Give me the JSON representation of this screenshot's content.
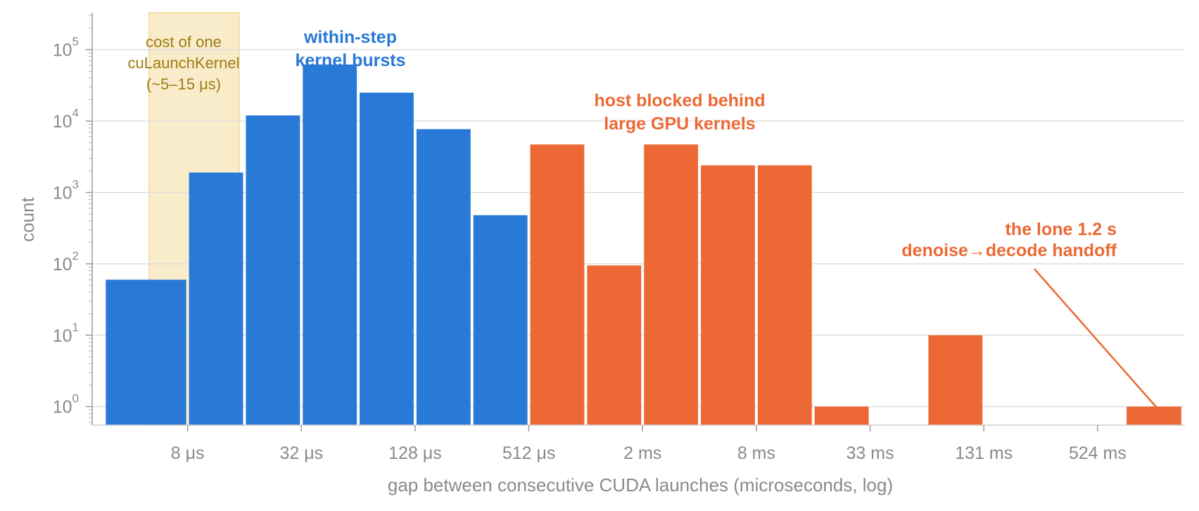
{
  "chart_data": {
    "type": "bar",
    "xlabel": "gap between consecutive CUDA launches (microseconds, log)",
    "ylabel": "count",
    "y_scale": "log",
    "ylim": [
      0.55,
      330000
    ],
    "xlim": [
      2.5,
      1520000
    ],
    "grid": "y-major",
    "x_ticks": [
      {
        "value": 8,
        "label": "8 μs"
      },
      {
        "value": 32,
        "label": "32 μs"
      },
      {
        "value": 128,
        "label": "128 μs"
      },
      {
        "value": 512,
        "label": "512 μs"
      },
      {
        "value": 2048,
        "label": "2 ms"
      },
      {
        "value": 8192,
        "label": "8 ms"
      },
      {
        "value": 32768,
        "label": "33 ms"
      },
      {
        "value": 131072,
        "label": "131 ms"
      },
      {
        "value": 524288,
        "label": "524 ms"
      }
    ],
    "y_ticks": [
      {
        "value": 1,
        "base": "10",
        "exp": "0"
      },
      {
        "value": 10,
        "base": "10",
        "exp": "1"
      },
      {
        "value": 100,
        "base": "10",
        "exp": "2"
      },
      {
        "value": 1000,
        "base": "10",
        "exp": "3"
      },
      {
        "value": 10000,
        "base": "10",
        "exp": "4"
      },
      {
        "value": 100000,
        "base": "10",
        "exp": "5"
      }
    ],
    "series": [
      {
        "color": "#2979d6",
        "bins": [
          {
            "lo": 2.9,
            "hi": 8,
            "count": 60
          },
          {
            "lo": 8,
            "hi": 16,
            "count": 1900
          },
          {
            "lo": 16,
            "hi": 32,
            "count": 12000
          },
          {
            "lo": 32,
            "hi": 64,
            "count": 62000
          },
          {
            "lo": 64,
            "hi": 128,
            "count": 25000
          },
          {
            "lo": 128,
            "hi": 256,
            "count": 7700
          },
          {
            "lo": 256,
            "hi": 512,
            "count": 480
          }
        ]
      },
      {
        "color": "#ec6935",
        "bins": [
          {
            "lo": 512,
            "hi": 1024,
            "count": 4700
          },
          {
            "lo": 1024,
            "hi": 2048,
            "count": 95
          },
          {
            "lo": 2048,
            "hi": 4096,
            "count": 4700
          },
          {
            "lo": 4096,
            "hi": 8192,
            "count": 2400
          },
          {
            "lo": 8192,
            "hi": 16384,
            "count": 2400
          },
          {
            "lo": 16384,
            "hi": 32768,
            "count": 1
          },
          {
            "lo": 65536,
            "hi": 131072,
            "count": 10
          },
          {
            "lo": 734000,
            "hi": 1480000,
            "count": 1
          }
        ]
      }
    ],
    "highlight_band": {
      "lo": 5,
      "hi": 15,
      "color": "#f9eccb"
    },
    "annotations": [
      {
        "id": "launch-cost",
        "lines": [
          "cost of one",
          "cuLaunchKernel",
          "(~5–15 μs)"
        ],
        "color": "#a07c12"
      },
      {
        "id": "within-step",
        "lines": [
          "within-step",
          "kernel bursts"
        ],
        "color": "#2979d6"
      },
      {
        "id": "host-blocked",
        "lines": [
          "host blocked behind",
          "large GPU kernels"
        ],
        "color": "#ec6935"
      },
      {
        "id": "handoff",
        "lines": [
          "the lone 1.2 s",
          "denoise→decode handoff"
        ],
        "color": "#ec6935"
      }
    ]
  }
}
